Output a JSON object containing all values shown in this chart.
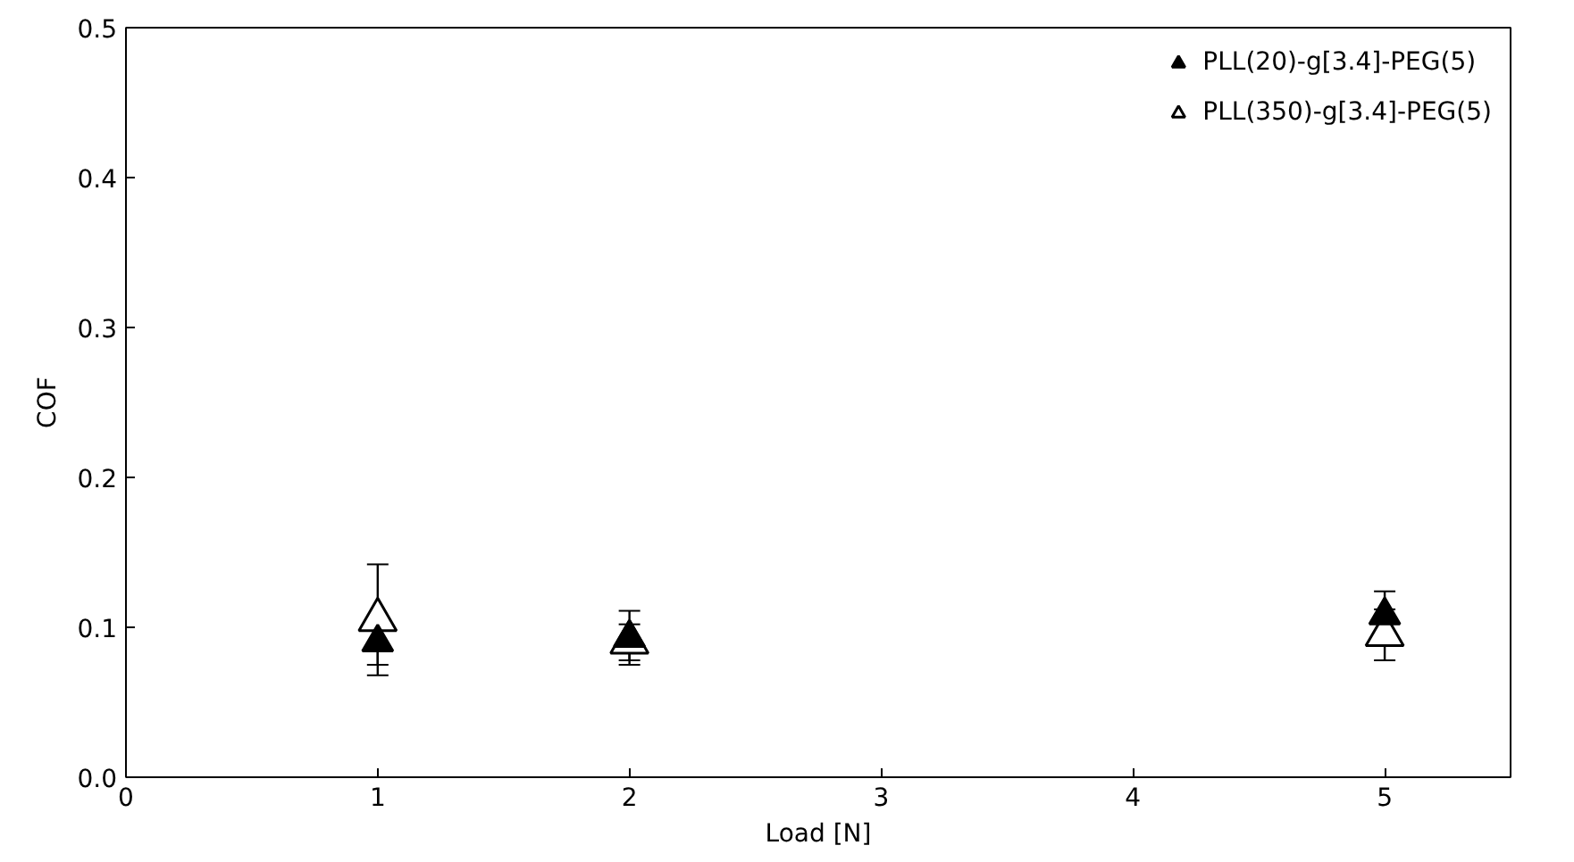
{
  "chart_data": {
    "type": "scatter",
    "xlabel": "Load [N]",
    "ylabel": "COF",
    "x": [
      1,
      2,
      5
    ],
    "series": [
      {
        "name": "PLL(20)-g[3.4]-PEG(5)",
        "color": "#000000",
        "values": [
          0.09,
          0.093,
          0.108
        ],
        "errors": [
          0.015,
          0.018,
          0.016
        ]
      },
      {
        "name": "PLL(350)-g[3.4]-PEG(5)",
        "color": "#000000",
        "values": [
          0.105,
          0.09,
          0.095
        ],
        "errors": [
          0.037,
          0.012,
          0.017
        ]
      }
    ],
    "xlim": [
      0,
      5.5
    ],
    "xticks": [
      0,
      1,
      2,
      3,
      4,
      5
    ],
    "ylim": [
      0,
      0.5
    ],
    "yticks": [
      {
        "value": 0,
        "label": "0.0"
      },
      {
        "value": 0.1,
        "label": "0.1"
      },
      {
        "value": 0.2,
        "label": "0.2"
      },
      {
        "value": 0.3,
        "label": "0.3"
      },
      {
        "value": 0.4,
        "label": "0.4"
      },
      {
        "value": 0.5,
        "label": "0.5"
      }
    ],
    "marker": "triangle",
    "grid": false,
    "legend": "top right"
  }
}
